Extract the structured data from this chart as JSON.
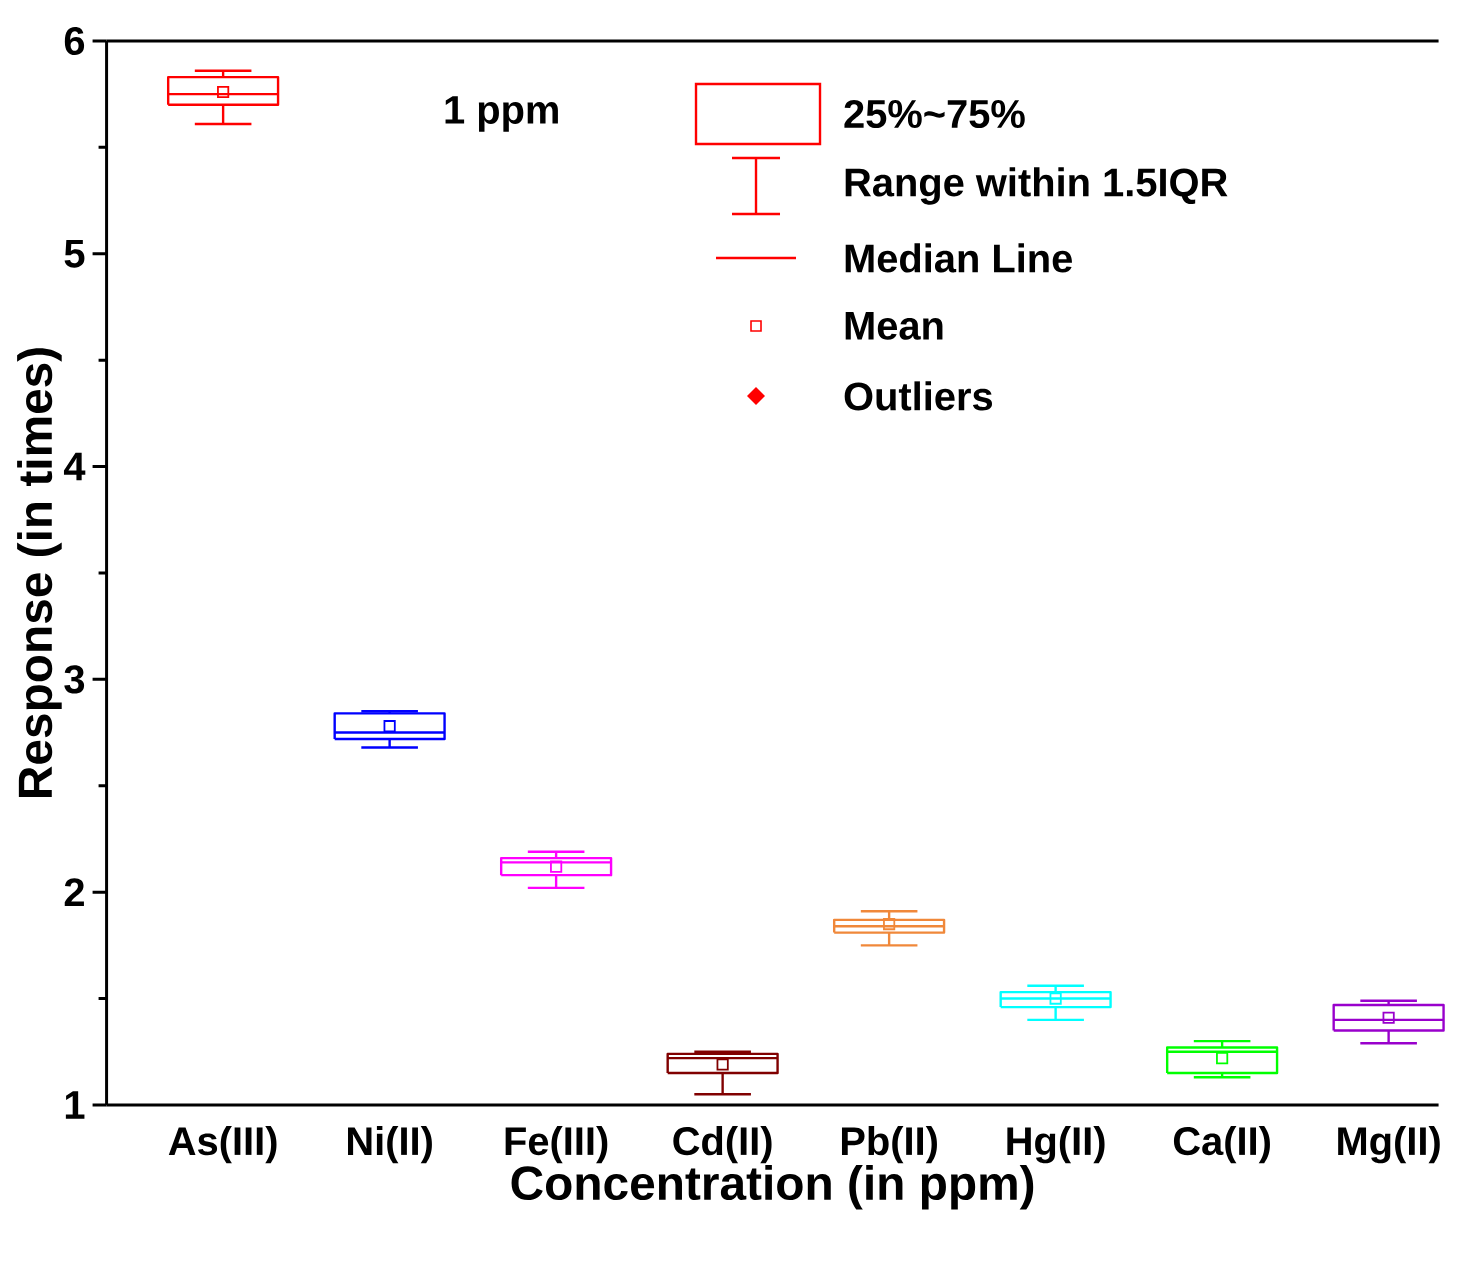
{
  "chart_data": {
    "type": "box",
    "categories": [
      "As(III)",
      "Ni(II)",
      "Fe(III)",
      "Cd(II)",
      "Pb(II)",
      "Hg(II)",
      "Ca(II)",
      "Mg(II)"
    ],
    "colors": [
      "#ff0000",
      "#0000ff",
      "#ff00ff",
      "#800000",
      "#f0883a",
      "#00ffff",
      "#00ff00",
      "#9900cc"
    ],
    "boxes": [
      {
        "low": 5.61,
        "q1": 5.7,
        "median": 5.75,
        "q3": 5.83,
        "high": 5.86,
        "mean": 5.76
      },
      {
        "low": 2.68,
        "q1": 2.72,
        "median": 2.75,
        "q3": 2.84,
        "high": 2.85,
        "mean": 2.78
      },
      {
        "low": 2.02,
        "q1": 2.08,
        "median": 2.14,
        "q3": 2.16,
        "high": 2.19,
        "mean": 2.12
      },
      {
        "low": 1.05,
        "q1": 1.15,
        "median": 1.22,
        "q3": 1.24,
        "high": 1.25,
        "mean": 1.19
      },
      {
        "low": 1.75,
        "q1": 1.81,
        "median": 1.84,
        "q3": 1.87,
        "high": 1.91,
        "mean": 1.85
      },
      {
        "low": 1.4,
        "q1": 1.46,
        "median": 1.5,
        "q3": 1.53,
        "high": 1.56,
        "mean": 1.5
      },
      {
        "low": 1.13,
        "q1": 1.15,
        "median": 1.25,
        "q3": 1.27,
        "high": 1.3,
        "mean": 1.22
      },
      {
        "low": 1.29,
        "q1": 1.35,
        "median": 1.4,
        "q3": 1.47,
        "high": 1.49,
        "mean": 1.41
      }
    ],
    "ylim": [
      1,
      6
    ],
    "yticks": [
      1,
      2,
      3,
      4,
      5,
      6
    ],
    "xlabel": "Concentration (in ppm)",
    "ylabel": "Response (in times)",
    "annotations": [
      "1 ppm",
      "25%~75%",
      "Range within 1.5IQR",
      "Median Line",
      "Mean",
      "Outliers"
    ]
  }
}
